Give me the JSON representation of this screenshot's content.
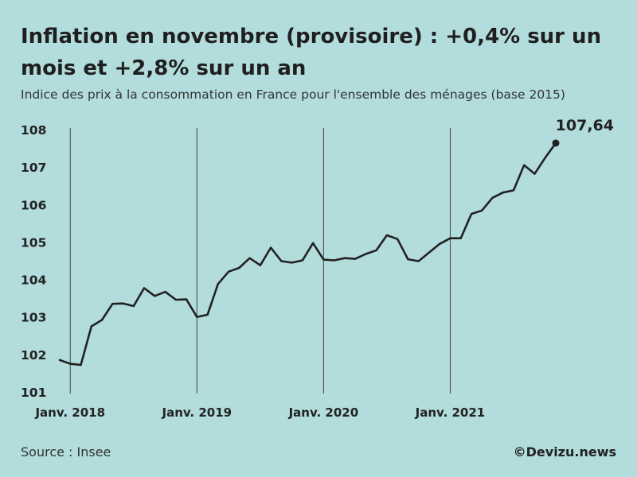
{
  "header": {
    "title": "Inflation en novembre (provisoire) : +0,4% sur un mois et +2,8% sur un an",
    "subtitle": "Indice des prix à la consommation en France pour l'ensemble des ménages (base 2015)"
  },
  "footer": {
    "source": "Source : Insee",
    "credit": "©Devizu.news"
  },
  "colors": {
    "background": "#b3dcdd",
    "line": "#222222"
  },
  "chart_data": {
    "type": "line",
    "title": "Inflation en novembre (provisoire) : +0,4% sur un mois et +2,8% sur un an",
    "subtitle": "Indice des prix à la consommation en France pour l'ensemble des ménages (base 2015)",
    "xlabel": "",
    "ylabel": "",
    "ylim": [
      101,
      108
    ],
    "yticks": [
      "101",
      "102",
      "103",
      "104",
      "105",
      "106",
      "107",
      "108"
    ],
    "xticks": [
      "Janv. 2018",
      "Janv. 2019",
      "Janv. 2020",
      "Janv. 2021"
    ],
    "x_start": "2017-12",
    "x_end": "2021-11",
    "grid": "vertical lines at each January",
    "end_label": "107,64",
    "series": [
      {
        "values": [
          101.85,
          101.75,
          101.72,
          102.75,
          102.92,
          103.35,
          103.36,
          103.29,
          103.77,
          103.56,
          103.67,
          103.46,
          103.47,
          103.0,
          103.06,
          103.88,
          104.21,
          104.31,
          104.57,
          104.38,
          104.85,
          104.49,
          104.45,
          104.51,
          104.97,
          104.53,
          104.51,
          104.57,
          104.55,
          104.68,
          104.78,
          105.18,
          105.08,
          104.54,
          104.49,
          104.72,
          104.95,
          105.1,
          105.1,
          105.75,
          105.84,
          106.18,
          106.32,
          106.38,
          107.05,
          106.82,
          107.25,
          107.64
        ]
      }
    ]
  }
}
